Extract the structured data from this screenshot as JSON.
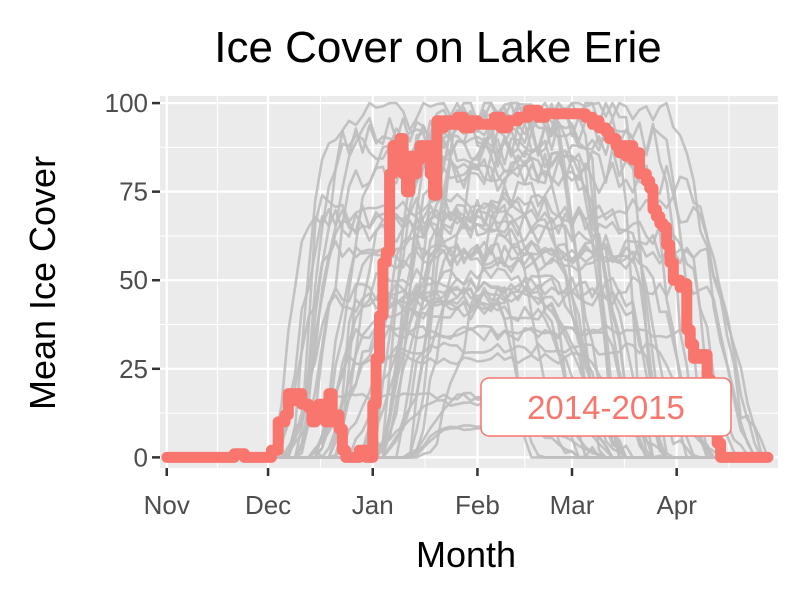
{
  "chart_data": {
    "type": "line",
    "title": "Ice Cover on Lake Erie",
    "xlabel": "Month",
    "ylabel": "Mean Ice Cover",
    "x_unit": "day of ice season starting Nov 1",
    "xlim": [
      -2,
      181
    ],
    "ylim": [
      -3,
      102
    ],
    "grid": true,
    "legend": "none",
    "x_ticks": [
      {
        "value": 0,
        "label": "Nov"
      },
      {
        "value": 30,
        "label": "Dec"
      },
      {
        "value": 61,
        "label": "Jan"
      },
      {
        "value": 92,
        "label": "Feb"
      },
      {
        "value": 120,
        "label": "Mar"
      },
      {
        "value": 151,
        "label": "Apr"
      }
    ],
    "y_ticks": [
      0,
      25,
      50,
      75,
      100
    ],
    "highlight_label": "2014-2015",
    "highlight_color": "#F8766D",
    "background_series_color": "#BEBEBE",
    "panel_color": "#EBEBEB",
    "highlight": {
      "name": "2014-2015",
      "x": [
        0,
        18,
        20,
        23,
        28,
        31,
        33,
        35,
        36,
        37,
        38,
        40,
        42,
        43,
        44,
        45,
        47,
        48,
        49,
        50,
        51,
        52,
        53,
        54,
        56,
        57,
        59,
        60,
        61,
        62,
        63,
        64,
        65,
        66,
        67,
        68,
        69,
        70,
        71,
        72,
        73,
        74,
        75,
        76,
        77,
        78,
        79,
        80,
        81,
        82,
        84,
        86,
        88,
        90,
        92,
        95,
        97,
        99,
        101,
        104,
        107,
        110,
        112,
        114,
        116,
        118,
        120,
        122,
        124,
        126,
        127,
        128,
        130,
        131,
        133,
        134,
        135,
        136,
        137,
        138,
        139,
        140,
        142,
        143,
        144,
        145,
        146,
        147,
        148,
        149,
        150,
        152,
        153,
        154,
        155,
        156,
        158,
        160,
        161,
        162,
        163,
        164,
        165,
        166,
        167,
        168,
        169,
        170,
        171,
        173,
        175,
        178
      ],
      "y": [
        0,
        0,
        1,
        0,
        0,
        2,
        10,
        12,
        18,
        16,
        18,
        15,
        14,
        10,
        12,
        15,
        10,
        18,
        10,
        12,
        8,
        2,
        0,
        0,
        0,
        2,
        0,
        0,
        15,
        28,
        40,
        55,
        58,
        80,
        88,
        87,
        90,
        80,
        75,
        85,
        80,
        84,
        88,
        86,
        88,
        80,
        74,
        95,
        93,
        95,
        94,
        96,
        93,
        95,
        94,
        94,
        96,
        93,
        95,
        96,
        98,
        96,
        97,
        97,
        97,
        97,
        97,
        97,
        96,
        94,
        95,
        93,
        92,
        90,
        88,
        86,
        88,
        85,
        88,
        84,
        86,
        80,
        78,
        76,
        70,
        68,
        66,
        65,
        60,
        55,
        50,
        48,
        49,
        36,
        32,
        28,
        29,
        22,
        18,
        10,
        4,
        0,
        0,
        0,
        0,
        0,
        0,
        0,
        0,
        0,
        0,
        0
      ]
    }
  }
}
